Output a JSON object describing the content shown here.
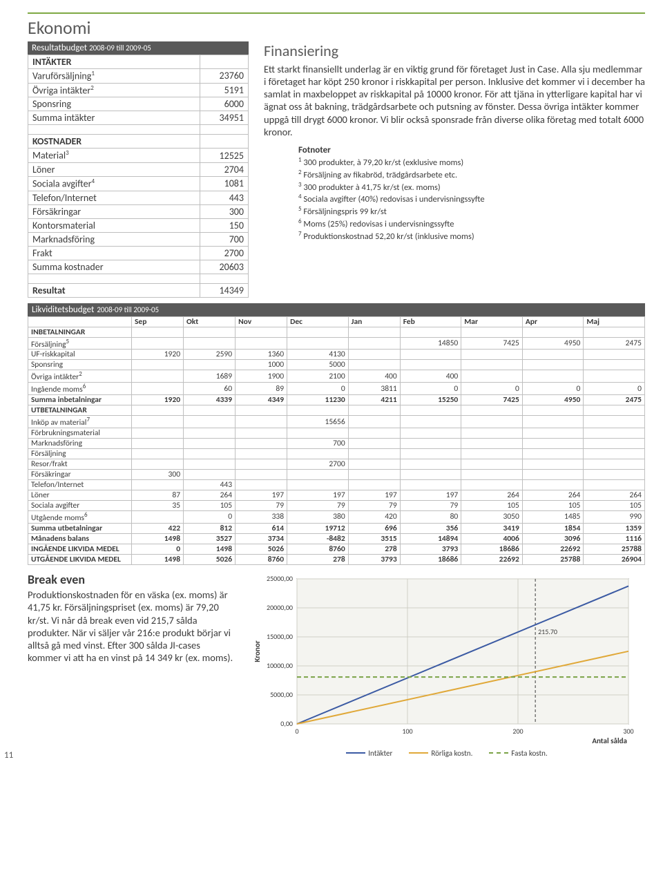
{
  "page_number": "11",
  "title": "Ekonomi",
  "budget": {
    "header_main": "Resultatbudget",
    "header_sub": "2008-09 till 2009-05",
    "intakter_label": "INTÄKTER",
    "rows_intakter": [
      {
        "label": "Varuförsäljning",
        "sup": "1",
        "value": "23760"
      },
      {
        "label": "Övriga intäkter",
        "sup": "2",
        "value": "5191"
      },
      {
        "label": "Sponsring",
        "sup": "",
        "value": "6000"
      }
    ],
    "sum_intakter": {
      "label": "Summa intäkter",
      "value": "34951"
    },
    "kostnader_label": "KOSTNADER",
    "rows_kostnader": [
      {
        "label": "Material",
        "sup": "3",
        "value": "12525"
      },
      {
        "label": "Löner",
        "sup": "",
        "value": "2704"
      },
      {
        "label": "Sociala avgifter",
        "sup": "4",
        "value": "1081"
      },
      {
        "label": "Telefon/Internet",
        "sup": "",
        "value": "443"
      },
      {
        "label": "Försäkringar",
        "sup": "",
        "value": "300"
      },
      {
        "label": "Kontorsmaterial",
        "sup": "",
        "value": "150"
      },
      {
        "label": "Marknadsföring",
        "sup": "",
        "value": "700"
      },
      {
        "label": "Frakt",
        "sup": "",
        "value": "2700"
      }
    ],
    "sum_kostnader": {
      "label": "Summa kostnader",
      "value": "20603"
    },
    "resultat": {
      "label": "Resultat",
      "value": "14349"
    }
  },
  "finans": {
    "title": "Finansiering",
    "body": "Ett starkt finansiellt underlag är en viktig grund för företaget Just in Case. Alla sju medlemmar i företaget har köpt 250 kronor i riskkapital per person. Inklusive det kommer vi i december ha samlat in maxbeloppet av riskkapital på 10000 kronor. För att tjäna in ytterligare kapital har vi ägnat oss åt bakning, trädgårdsarbete och putsning av fönster. Dessa övriga intäkter kommer uppgå till drygt 6000 kronor. Vi blir också sponsrade från diverse olika företag med totalt 6000 kronor."
  },
  "footnotes": {
    "title": "Fotnoter",
    "items": [
      "300 produkter, à 79,20 kr/st (exklusive moms)",
      "Försäljning av fikabröd, trädgårdsarbete etc.",
      "300 produkter à 41,75 kr/st (ex. moms)",
      "Sociala avgifter (40%) redovisas i undervisningssyfte",
      "Försäljningspris 99 kr/st",
      "Moms (25%) redovisas i undervisningssyfte",
      "Produktionskostnad 52,20 kr/st (inklusive moms)"
    ]
  },
  "likv": {
    "header_main": "Likviditetsbudget",
    "header_sub": "2008-09 till 2009-05",
    "months": [
      "Sep",
      "Okt",
      "Nov",
      "Dec",
      "Jan",
      "Feb",
      "Mar",
      "Apr",
      "Maj"
    ],
    "section_in": "INBETALNINGAR",
    "rows_in": [
      {
        "label": "Försäljning",
        "sup": "5",
        "vals": [
          "",
          "",
          "",
          "",
          "",
          "14850",
          "7425",
          "4950",
          "2475"
        ]
      },
      {
        "label": "UF-riskkapital",
        "sup": "",
        "vals": [
          "1920",
          "2590",
          "1360",
          "4130",
          "",
          "",
          "",
          "",
          ""
        ]
      },
      {
        "label": "Sponsring",
        "sup": "",
        "vals": [
          "",
          "",
          "1000",
          "5000",
          "",
          "",
          "",
          "",
          ""
        ]
      },
      {
        "label": "Övriga intäkter",
        "sup": "2",
        "vals": [
          "",
          "1689",
          "1900",
          "2100",
          "400",
          "400",
          "",
          "",
          ""
        ]
      },
      {
        "label": "Ingående moms",
        "sup": "6",
        "vals": [
          "",
          "60",
          "89",
          "0",
          "3811",
          "0",
          "0",
          "0",
          "0"
        ]
      }
    ],
    "sum_in": {
      "label": "Summa inbetalningar",
      "vals": [
        "1920",
        "4339",
        "4349",
        "11230",
        "4211",
        "15250",
        "7425",
        "4950",
        "2475"
      ]
    },
    "section_out": "UTBETALNINGAR",
    "rows_out": [
      {
        "label": "Inköp av material",
        "sup": "7",
        "vals": [
          "",
          "",
          "",
          "15656",
          "",
          "",
          "",
          "",
          ""
        ]
      },
      {
        "label": "Förbrukningsmaterial",
        "sup": "",
        "vals": [
          "",
          "",
          "",
          "",
          "",
          "",
          "",
          "",
          ""
        ]
      },
      {
        "label": "Marknadsföring",
        "sup": "",
        "vals": [
          "",
          "",
          "",
          "700",
          "",
          "",
          "",
          "",
          ""
        ]
      },
      {
        "label": "Försäljning",
        "sup": "",
        "vals": [
          "",
          "",
          "",
          "",
          "",
          "",
          "",
          "",
          ""
        ]
      },
      {
        "label": "Resor/frakt",
        "sup": "",
        "vals": [
          "",
          "",
          "",
          "2700",
          "",
          "",
          "",
          "",
          ""
        ]
      },
      {
        "label": "Försäkringar",
        "sup": "",
        "vals": [
          "300",
          "",
          "",
          "",
          "",
          "",
          "",
          "",
          ""
        ]
      },
      {
        "label": "Telefon/Internet",
        "sup": "",
        "vals": [
          "",
          "443",
          "",
          "",
          "",
          "",
          "",
          "",
          ""
        ]
      },
      {
        "label": "Löner",
        "sup": "",
        "vals": [
          "87",
          "264",
          "197",
          "197",
          "197",
          "197",
          "264",
          "264",
          "264"
        ]
      },
      {
        "label": "Sociala avgifter",
        "sup": "",
        "vals": [
          "35",
          "105",
          "79",
          "79",
          "79",
          "79",
          "105",
          "105",
          "105"
        ]
      },
      {
        "label": "Utgående moms",
        "sup": "6",
        "vals": [
          "",
          "0",
          "338",
          "380",
          "420",
          "80",
          "3050",
          "1485",
          "990"
        ]
      }
    ],
    "sum_out": {
      "label": "Summa utbetalningar",
      "vals": [
        "422",
        "812",
        "614",
        "19712",
        "696",
        "356",
        "3419",
        "1854",
        "1359"
      ]
    },
    "balance": {
      "label": "Månadens balans",
      "vals": [
        "1498",
        "3527",
        "3734",
        "-8482",
        "3515",
        "14894",
        "4006",
        "3096",
        "1116"
      ]
    },
    "ingoing": {
      "label": "INGÅENDE LIKVIDA MEDEL",
      "vals": [
        "0",
        "1498",
        "5026",
        "8760",
        "278",
        "3793",
        "18686",
        "22692",
        "25788"
      ]
    },
    "outgoing": {
      "label": "UTGÅENDE LIKVIDA MEDEL",
      "vals": [
        "1498",
        "5026",
        "8760",
        "278",
        "3793",
        "18686",
        "22692",
        "25788",
        "26904"
      ]
    }
  },
  "breakeven": {
    "title": "Break even",
    "body": "Produktionskostnaden för en väska (ex. moms) är 41,75 kr. Försäljningspriset (ex. moms) är 79,20 kr/st. Vi når då break even vid 215,7 sålda produkter. När vi säljer vår 216:e produkt börjar vi alltså gå med vinst. Efter 300 sålda JI-cases kommer vi att ha en vinst på 14 349 kr (ex. moms)."
  },
  "chart": {
    "type": "line",
    "x_label": "Antal sålda",
    "y_label": "Kronor",
    "xlim": [
      0,
      300
    ],
    "ylim": [
      0,
      25000
    ],
    "xticks": [
      0,
      100,
      200,
      300
    ],
    "yticks": [
      0,
      5000,
      10000,
      15000,
      20000,
      25000
    ],
    "ytick_labels": [
      "0,00",
      "5000,00",
      "10000,00",
      "15000,00",
      "20000,00",
      "25000,00"
    ],
    "breakeven_x": 215.7,
    "breakeven_label": "215.70",
    "series": [
      {
        "name": "Intäkter",
        "color": "#3b5aa3",
        "dash": "0",
        "points": [
          [
            0,
            0
          ],
          [
            300,
            23760
          ]
        ]
      },
      {
        "name": "Rörliga kostn.",
        "color": "#e0a838",
        "dash": "0",
        "points": [
          [
            0,
            0
          ],
          [
            300,
            12525
          ]
        ]
      },
      {
        "name": "Fasta kostn.",
        "color": "#7aa246",
        "dash": "6,4",
        "points": [
          [
            0,
            8078
          ],
          [
            300,
            8078
          ]
        ]
      }
    ],
    "plot_bg": "#f4f4f0",
    "grid_color": "#cfcfc6",
    "axis_color": "#3a3a3a",
    "font_size": 10
  }
}
